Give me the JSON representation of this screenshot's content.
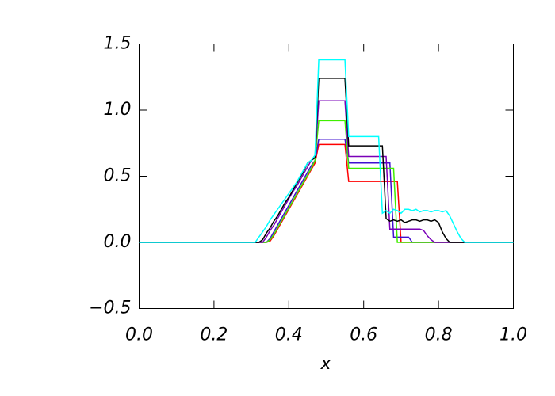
{
  "chart_data": {
    "type": "line",
    "x_label": "x",
    "xlim": [
      0,
      1
    ],
    "ylim": [
      -0.5,
      1.5
    ],
    "xticks": [
      {
        "value": 0,
        "label": "0.0"
      },
      {
        "value": 0.2,
        "label": "0.2"
      },
      {
        "value": 0.4,
        "label": "0.4"
      },
      {
        "value": 0.6,
        "label": "0.6"
      },
      {
        "value": 0.8,
        "label": "0.8"
      },
      {
        "value": 1,
        "label": "1.0"
      }
    ],
    "yticks": [
      {
        "value": -0.5,
        "label": "−0.5"
      },
      {
        "value": 0,
        "label": "0.0"
      },
      0.5,
      {
        "value": 1,
        "label": "1.0"
      },
      1.5
    ],
    "x": [
      0,
      0.1,
      0.2,
      0.3,
      0.31,
      0.32,
      0.33,
      0.34,
      0.35,
      0.36,
      0.37,
      0.38,
      0.39,
      0.4,
      0.41,
      0.42,
      0.43,
      0.44,
      0.45,
      0.46,
      0.47,
      0.48,
      0.49,
      0.5,
      0.51,
      0.52,
      0.53,
      0.54,
      0.55,
      0.56,
      0.57,
      0.58,
      0.59,
      0.6,
      0.61,
      0.62,
      0.63,
      0.64,
      0.65,
      0.66,
      0.67,
      0.68,
      0.69,
      0.7,
      0.71,
      0.72,
      0.73,
      0.74,
      0.75,
      0.76,
      0.77,
      0.78,
      0.79,
      0.8,
      0.81,
      0.82,
      0.83,
      0.84,
      0.85,
      0.86,
      0.87,
      0.88,
      0.89,
      0.9,
      1
    ],
    "series": [
      {
        "color": "#ff0000",
        "values": [
          0,
          0,
          0,
          0,
          0,
          0,
          0,
          0,
          0.01,
          0.05,
          0.1,
          0.15,
          0.2,
          0.25,
          0.3,
          0.35,
          0.4,
          0.45,
          0.5,
          0.55,
          0.6,
          0.74,
          0.74,
          0.74,
          0.74,
          0.74,
          0.74,
          0.74,
          0.74,
          0.46,
          0.46,
          0.46,
          0.46,
          0.46,
          0.46,
          0.46,
          0.46,
          0.46,
          0.46,
          0.46,
          0.46,
          0.46,
          0.46,
          0,
          0,
          0,
          0,
          0,
          0,
          0,
          0,
          0,
          0,
          0,
          0,
          0,
          0,
          0,
          0,
          0,
          0,
          0,
          0,
          0,
          0
        ]
      },
      {
        "color": "#4010d0",
        "values": [
          0,
          0,
          0,
          0,
          0,
          0,
          0,
          0,
          0.03,
          0.08,
          0.13,
          0.18,
          0.23,
          0.28,
          0.33,
          0.38,
          0.43,
          0.48,
          0.53,
          0.58,
          0.62,
          0.78,
          0.78,
          0.78,
          0.78,
          0.78,
          0.78,
          0.78,
          0.78,
          0.6,
          0.6,
          0.6,
          0.6,
          0.6,
          0.6,
          0.6,
          0.6,
          0.6,
          0.6,
          0.6,
          0.6,
          0.04,
          0.04,
          0.04,
          0.04,
          0.04,
          0,
          0,
          0,
          0,
          0,
          0,
          0,
          0,
          0,
          0,
          0,
          0,
          0,
          0,
          0,
          0,
          0,
          0,
          0
        ]
      },
      {
        "color": "#40ee00",
        "values": [
          0,
          0,
          0,
          0,
          0,
          0,
          0,
          0,
          0.02,
          0.06,
          0.11,
          0.16,
          0.21,
          0.26,
          0.31,
          0.36,
          0.41,
          0.46,
          0.51,
          0.56,
          0.62,
          0.92,
          0.92,
          0.92,
          0.92,
          0.92,
          0.92,
          0.92,
          0.92,
          0.56,
          0.56,
          0.56,
          0.56,
          0.56,
          0.56,
          0.56,
          0.56,
          0.56,
          0.56,
          0.56,
          0.56,
          0.56,
          0,
          0,
          0,
          0,
          0,
          0,
          0,
          0,
          0,
          0,
          0,
          0,
          0,
          0,
          0,
          0,
          0,
          0,
          0,
          0,
          0,
          0,
          0
        ]
      },
      {
        "color": "#7a00b8",
        "values": [
          0,
          0,
          0,
          0,
          0,
          0,
          0,
          0.04,
          0.09,
          0.13,
          0.18,
          0.23,
          0.28,
          0.33,
          0.38,
          0.42,
          0.47,
          0.52,
          0.57,
          0.62,
          0.64,
          1.07,
          1.07,
          1.07,
          1.07,
          1.07,
          1.07,
          1.07,
          1.07,
          0.65,
          0.65,
          0.65,
          0.65,
          0.65,
          0.65,
          0.65,
          0.65,
          0.65,
          0.65,
          0.65,
          0.1,
          0.1,
          0.1,
          0.1,
          0.1,
          0.1,
          0.1,
          0.1,
          0.1,
          0.09,
          0.05,
          0.02,
          0,
          0,
          0,
          0,
          0,
          0,
          0,
          0,
          0,
          0,
          0,
          0,
          0
        ]
      },
      {
        "color": "#000000",
        "values": [
          0,
          0,
          0,
          0,
          0,
          0,
          0.02,
          0.07,
          0.11,
          0.16,
          0.2,
          0.25,
          0.3,
          0.34,
          0.39,
          0.44,
          0.49,
          0.54,
          0.6,
          0.62,
          0.64,
          1.24,
          1.24,
          1.24,
          1.24,
          1.24,
          1.24,
          1.24,
          1.24,
          0.73,
          0.73,
          0.73,
          0.73,
          0.73,
          0.73,
          0.73,
          0.73,
          0.73,
          0.73,
          0.18,
          0.16,
          0.17,
          0.16,
          0.17,
          0.15,
          0.16,
          0.17,
          0.17,
          0.16,
          0.17,
          0.17,
          0.16,
          0.17,
          0.15,
          0.08,
          0.03,
          0,
          0,
          0,
          0,
          0,
          0,
          0,
          0,
          0
        ]
      },
      {
        "color": "#00ffff",
        "values": [
          0,
          0,
          0,
          0,
          0,
          0.04,
          0.08,
          0.12,
          0.17,
          0.21,
          0.25,
          0.29,
          0.33,
          0.37,
          0.41,
          0.45,
          0.5,
          0.55,
          0.6,
          0.62,
          0.66,
          1.38,
          1.38,
          1.38,
          1.38,
          1.38,
          1.38,
          1.38,
          1.38,
          0.8,
          0.8,
          0.8,
          0.8,
          0.8,
          0.8,
          0.8,
          0.8,
          0.8,
          0.22,
          0.24,
          0.22,
          0.25,
          0.24,
          0.22,
          0.25,
          0.25,
          0.24,
          0.25,
          0.23,
          0.24,
          0.24,
          0.23,
          0.24,
          0.24,
          0.23,
          0.24,
          0.2,
          0.14,
          0.08,
          0.03,
          0,
          0,
          0,
          0,
          0
        ]
      }
    ]
  }
}
